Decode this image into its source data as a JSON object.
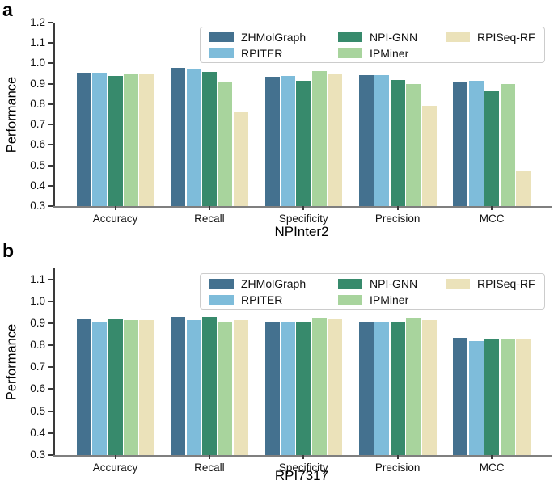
{
  "figure": {
    "panel_a_letter": "a",
    "panel_b_letter": "b"
  },
  "legend": {
    "entries": [
      {
        "label": "ZHMolGraph",
        "color": "#44718F"
      },
      {
        "label": "RPITER",
        "color": "#7EBCDA"
      },
      {
        "label": "NPI-GNN",
        "color": "#378A6C"
      },
      {
        "label": "IPMiner",
        "color": "#A8D49D"
      },
      {
        "label": "RPISeq-RF",
        "color": "#EBE2BA"
      }
    ]
  },
  "chart_data": [
    {
      "type": "bar",
      "panel_label": "a",
      "title": "",
      "xlabel": "NPInter2",
      "ylabel": "Performance",
      "categories": [
        "Accuracy",
        "Recall",
        "Specificity",
        "Precision",
        "MCC"
      ],
      "ylim": [
        0.3,
        1.2
      ],
      "yticks": [
        0.3,
        0.4,
        0.5,
        0.6,
        0.7,
        0.8,
        0.9,
        1.0,
        1.1,
        1.2
      ],
      "grid": false,
      "legend_position": "upper-right-inside",
      "series": [
        {
          "name": "ZHMolGraph",
          "color": "#44718F",
          "values": [
            0.956,
            0.978,
            0.936,
            0.941,
            0.912
          ]
        },
        {
          "name": "RPITER",
          "color": "#7EBCDA",
          "values": [
            0.956,
            0.974,
            0.939,
            0.941,
            0.913
          ]
        },
        {
          "name": "NPI-GNN",
          "color": "#378A6C",
          "values": [
            0.937,
            0.957,
            0.913,
            0.918,
            0.869
          ]
        },
        {
          "name": "IPMiner",
          "color": "#A8D49D",
          "values": [
            0.952,
            0.907,
            0.961,
            0.898,
            0.899
          ]
        },
        {
          "name": "RPISeq-RF",
          "color": "#EBE2BA",
          "values": [
            0.946,
            0.764,
            0.95,
            0.79,
            0.476
          ]
        }
      ]
    },
    {
      "type": "bar",
      "panel_label": "b",
      "title": "",
      "xlabel": "RPI7317",
      "ylabel": "Performance",
      "categories": [
        "Accuracy",
        "Recall",
        "Specificity",
        "Precision",
        "MCC"
      ],
      "ylim": [
        0.3,
        1.15
      ],
      "yticks": [
        0.3,
        0.4,
        0.5,
        0.6,
        0.7,
        0.8,
        0.9,
        1.0,
        1.1
      ],
      "grid": false,
      "legend_position": "upper-right-inside",
      "series": [
        {
          "name": "ZHMolGraph",
          "color": "#44718F",
          "values": [
            0.919,
            0.93,
            0.904,
            0.906,
            0.833
          ]
        },
        {
          "name": "RPITER",
          "color": "#7EBCDA",
          "values": [
            0.909,
            0.913,
            0.908,
            0.906,
            0.82
          ]
        },
        {
          "name": "NPI-GNN",
          "color": "#378A6C",
          "values": [
            0.918,
            0.931,
            0.908,
            0.909,
            0.83
          ]
        },
        {
          "name": "IPMiner",
          "color": "#A8D49D",
          "values": [
            0.915,
            0.905,
            0.926,
            0.926,
            0.827
          ]
        },
        {
          "name": "RPISeq-RF",
          "color": "#EBE2BA",
          "values": [
            0.914,
            0.913,
            0.918,
            0.915,
            0.825
          ]
        }
      ]
    }
  ]
}
